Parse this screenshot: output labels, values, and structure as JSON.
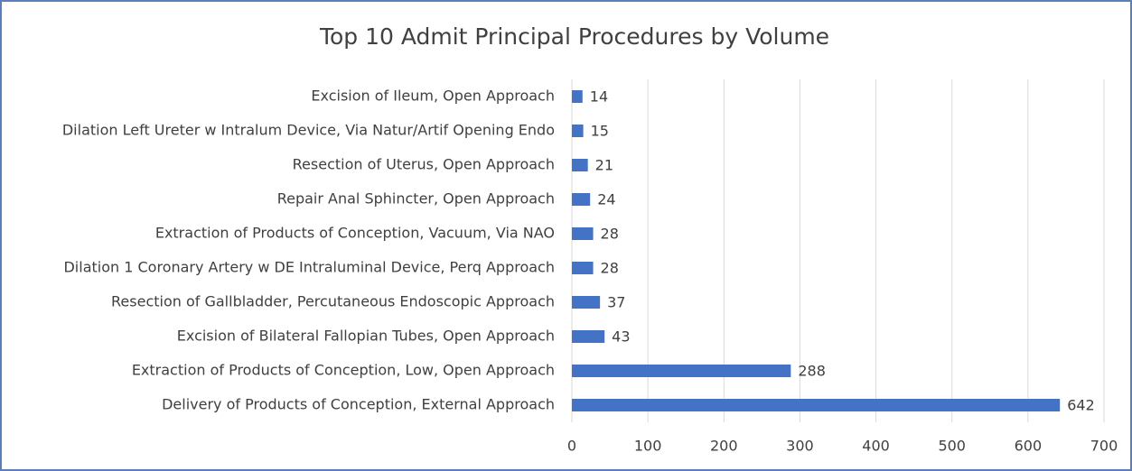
{
  "chart_data": {
    "type": "bar",
    "orientation": "horizontal",
    "title": "Top 10 Admit Principal Procedures by Volume",
    "categories": [
      "Excision of Ileum, Open Approach",
      "Dilation Left Ureter w Intralum Device, Via Natur/Artif Opening Endo",
      "Resection of Uterus, Open Approach",
      "Repair Anal Sphincter, Open Approach",
      "Extraction of Products of Conception, Vacuum, Via NAO",
      "Dilation 1 Coronary Artery w DE Intraluminal Device, Perq Approach",
      "Resection of Gallbladder, Percutaneous Endoscopic Approach",
      "Excision of Bilateral Fallopian Tubes, Open Approach",
      "Extraction of Products of Conception, Low, Open Approach",
      "Delivery of Products of Conception, External Approach"
    ],
    "values": [
      14,
      15,
      21,
      24,
      28,
      28,
      37,
      43,
      288,
      642
    ],
    "color": "#4472c4",
    "xlim": [
      0,
      700
    ],
    "xticks": [
      0,
      100,
      200,
      300,
      400,
      500,
      600,
      700
    ],
    "grid": true
  }
}
